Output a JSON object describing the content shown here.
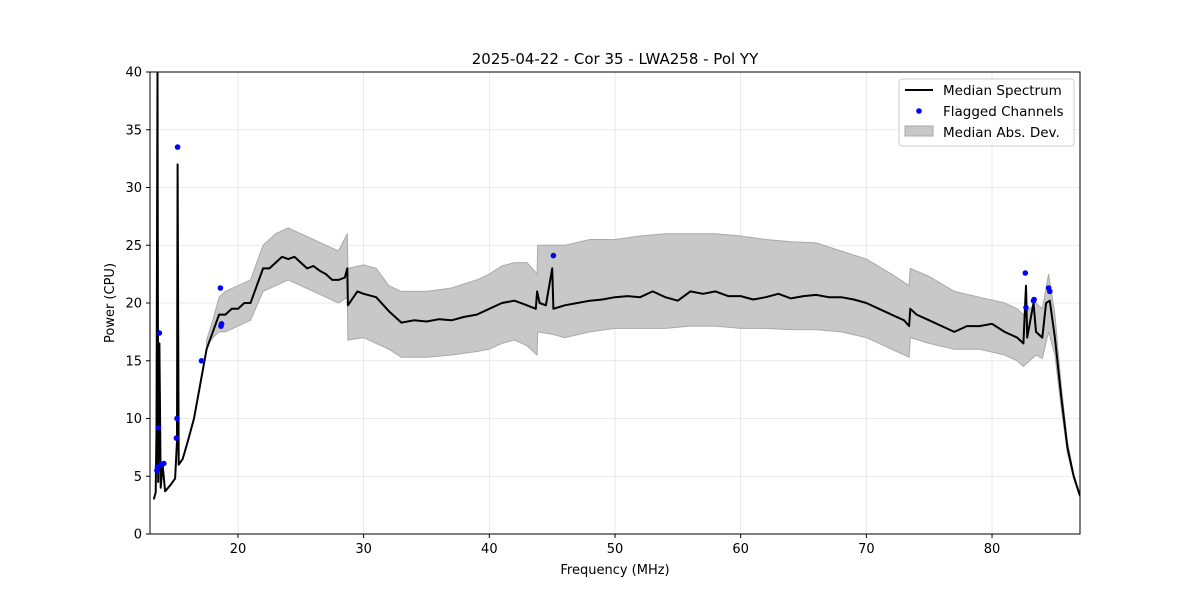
{
  "chart_data": {
    "type": "line",
    "title": "2025-04-22 - Cor 35 - LWA258 - Pol YY",
    "xlabel": "Frequency (MHz)",
    "ylabel": "Power (CPU)",
    "xlim": [
      13.0,
      87.0
    ],
    "ylim": [
      0,
      40
    ],
    "xticks": [
      20,
      30,
      40,
      50,
      60,
      70,
      80
    ],
    "yticks": [
      0,
      5,
      10,
      15,
      20,
      25,
      30,
      35,
      40
    ],
    "grid": true,
    "legend_position": "top-right",
    "legend": [
      {
        "label": "Median Spectrum",
        "kind": "line",
        "color": "#000000"
      },
      {
        "label": "Flagged Channels",
        "kind": "marker",
        "color": "#0000ff"
      },
      {
        "label": "Median Abs. Dev.",
        "kind": "patch",
        "color": "#c8c8c8"
      }
    ],
    "series": [
      {
        "name": "Median Spectrum",
        "color": "#000000",
        "points": [
          [
            13.3,
            3.0
          ],
          [
            13.45,
            3.6
          ],
          [
            13.52,
            9.0
          ],
          [
            13.6,
            40.0
          ],
          [
            13.65,
            4.5
          ],
          [
            13.75,
            16.5
          ],
          [
            13.85,
            4.0
          ],
          [
            14.0,
            6.0
          ],
          [
            14.2,
            3.7
          ],
          [
            14.6,
            4.2
          ],
          [
            15.0,
            4.8
          ],
          [
            15.15,
            8.0
          ],
          [
            15.2,
            32.0
          ],
          [
            15.28,
            6.0
          ],
          [
            15.6,
            6.5
          ],
          [
            16.0,
            8.0
          ],
          [
            16.5,
            10.0
          ],
          [
            17.0,
            13.0
          ],
          [
            17.5,
            16.0
          ],
          [
            18.0,
            17.5
          ],
          [
            18.5,
            19.0
          ],
          [
            19.0,
            19.0
          ],
          [
            19.5,
            19.5
          ],
          [
            20.0,
            19.5
          ],
          [
            20.5,
            20.0
          ],
          [
            21.0,
            20.0
          ],
          [
            21.5,
            21.5
          ],
          [
            22.0,
            23.0
          ],
          [
            22.5,
            23.0
          ],
          [
            23.0,
            23.5
          ],
          [
            23.5,
            24.0
          ],
          [
            24.0,
            23.8
          ],
          [
            24.5,
            24.0
          ],
          [
            25.0,
            23.5
          ],
          [
            25.5,
            23.0
          ],
          [
            26.0,
            23.2
          ],
          [
            26.5,
            22.8
          ],
          [
            27.0,
            22.5
          ],
          [
            27.5,
            22.0
          ],
          [
            28.0,
            22.0
          ],
          [
            28.5,
            22.2
          ],
          [
            28.7,
            23.0
          ],
          [
            28.75,
            19.8
          ],
          [
            29.5,
            21.0
          ],
          [
            30.0,
            20.8
          ],
          [
            31.0,
            20.5
          ],
          [
            32.0,
            19.3
          ],
          [
            33.0,
            18.3
          ],
          [
            34.0,
            18.5
          ],
          [
            35.0,
            18.4
          ],
          [
            36.0,
            18.6
          ],
          [
            37.0,
            18.5
          ],
          [
            38.0,
            18.8
          ],
          [
            39.0,
            19.0
          ],
          [
            40.0,
            19.5
          ],
          [
            41.0,
            20.0
          ],
          [
            42.0,
            20.2
          ],
          [
            43.0,
            19.8
          ],
          [
            43.7,
            19.5
          ],
          [
            43.8,
            21.0
          ],
          [
            44.0,
            20.0
          ],
          [
            44.5,
            19.8
          ],
          [
            45.0,
            23.0
          ],
          [
            45.1,
            19.5
          ],
          [
            46.0,
            19.8
          ],
          [
            47.0,
            20.0
          ],
          [
            48.0,
            20.2
          ],
          [
            49.0,
            20.3
          ],
          [
            50.0,
            20.5
          ],
          [
            51.0,
            20.6
          ],
          [
            52.0,
            20.5
          ],
          [
            53.0,
            21.0
          ],
          [
            54.0,
            20.5
          ],
          [
            55.0,
            20.2
          ],
          [
            56.0,
            21.0
          ],
          [
            57.0,
            20.8
          ],
          [
            58.0,
            21.0
          ],
          [
            59.0,
            20.6
          ],
          [
            60.0,
            20.6
          ],
          [
            61.0,
            20.3
          ],
          [
            62.0,
            20.5
          ],
          [
            63.0,
            20.8
          ],
          [
            64.0,
            20.4
          ],
          [
            65.0,
            20.6
          ],
          [
            66.0,
            20.7
          ],
          [
            67.0,
            20.5
          ],
          [
            68.0,
            20.5
          ],
          [
            69.0,
            20.3
          ],
          [
            70.0,
            20.0
          ],
          [
            71.0,
            19.5
          ],
          [
            72.0,
            19.0
          ],
          [
            73.0,
            18.5
          ],
          [
            73.4,
            18.0
          ],
          [
            73.5,
            19.5
          ],
          [
            74.0,
            19.0
          ],
          [
            75.0,
            18.5
          ],
          [
            76.0,
            18.0
          ],
          [
            77.0,
            17.5
          ],
          [
            78.0,
            18.0
          ],
          [
            79.0,
            18.0
          ],
          [
            80.0,
            18.2
          ],
          [
            81.0,
            17.5
          ],
          [
            82.0,
            17.0
          ],
          [
            82.5,
            16.5
          ],
          [
            82.7,
            21.5
          ],
          [
            82.8,
            17.0
          ],
          [
            83.3,
            20.0
          ],
          [
            83.5,
            17.5
          ],
          [
            84.0,
            17.0
          ],
          [
            84.3,
            20.0
          ],
          [
            84.6,
            20.2
          ],
          [
            85.0,
            17.0
          ],
          [
            85.5,
            12.0
          ],
          [
            86.0,
            7.5
          ],
          [
            86.5,
            5.0
          ],
          [
            87.0,
            3.3
          ]
        ]
      },
      {
        "name": "Flagged Channels",
        "color": "#0000ff",
        "points": [
          [
            13.55,
            5.5
          ],
          [
            13.6,
            5.8
          ],
          [
            13.65,
            9.2
          ],
          [
            13.75,
            17.4
          ],
          [
            13.9,
            6.0
          ],
          [
            14.1,
            6.1
          ],
          [
            15.2,
            33.5
          ],
          [
            15.15,
            10.0
          ],
          [
            15.1,
            8.3
          ],
          [
            17.1,
            15.0
          ],
          [
            18.6,
            21.3
          ],
          [
            18.65,
            18.0
          ],
          [
            18.7,
            18.2
          ],
          [
            45.1,
            24.1
          ],
          [
            82.65,
            22.6
          ],
          [
            82.7,
            19.6
          ],
          [
            83.3,
            20.2
          ],
          [
            83.35,
            20.3
          ],
          [
            84.5,
            21.3
          ],
          [
            84.6,
            21.0
          ]
        ]
      },
      {
        "name": "Median Abs. Dev.",
        "color": "#c8c8c8",
        "band": [
          [
            17.5,
            16.2,
            16.8
          ],
          [
            18.0,
            17.0,
            18.5
          ],
          [
            18.5,
            17.5,
            20.5
          ],
          [
            19.0,
            17.5,
            21.0
          ],
          [
            20.0,
            18.0,
            21.5
          ],
          [
            21.0,
            18.5,
            22.0
          ],
          [
            22.0,
            21.0,
            25.0
          ],
          [
            23.0,
            21.5,
            26.0
          ],
          [
            24.0,
            22.0,
            26.5
          ],
          [
            25.0,
            21.5,
            26.0
          ],
          [
            26.0,
            21.0,
            25.5
          ],
          [
            27.0,
            20.5,
            25.0
          ],
          [
            28.0,
            20.0,
            24.5
          ],
          [
            28.7,
            20.5,
            26.0
          ],
          [
            28.75,
            16.8,
            23.0
          ],
          [
            30.0,
            17.0,
            23.3
          ],
          [
            31.0,
            16.5,
            23.0
          ],
          [
            32.0,
            16.0,
            21.5
          ],
          [
            33.0,
            15.3,
            21.0
          ],
          [
            35.0,
            15.3,
            21.0
          ],
          [
            37.0,
            15.5,
            21.3
          ],
          [
            39.0,
            15.8,
            22.0
          ],
          [
            40.0,
            16.0,
            22.5
          ],
          [
            41.0,
            16.5,
            23.2
          ],
          [
            42.0,
            16.8,
            23.5
          ],
          [
            43.0,
            16.3,
            23.5
          ],
          [
            43.8,
            15.5,
            22.5
          ],
          [
            43.85,
            17.5,
            25.0
          ],
          [
            45.0,
            17.3,
            25.0
          ],
          [
            46.0,
            17.0,
            25.0
          ],
          [
            48.0,
            17.5,
            25.5
          ],
          [
            50.0,
            17.8,
            25.5
          ],
          [
            52.0,
            17.8,
            25.8
          ],
          [
            54.0,
            17.8,
            26.0
          ],
          [
            56.0,
            18.0,
            26.0
          ],
          [
            58.0,
            18.0,
            26.0
          ],
          [
            60.0,
            17.8,
            25.8
          ],
          [
            62.0,
            17.8,
            25.5
          ],
          [
            64.0,
            17.7,
            25.3
          ],
          [
            66.0,
            17.7,
            25.2
          ],
          [
            68.0,
            17.5,
            24.5
          ],
          [
            70.0,
            17.0,
            23.8
          ],
          [
            72.0,
            16.0,
            22.5
          ],
          [
            73.4,
            15.3,
            21.5
          ],
          [
            73.5,
            17.0,
            23.0
          ],
          [
            75.0,
            16.5,
            22.3
          ],
          [
            77.0,
            16.0,
            21.0
          ],
          [
            79.0,
            16.0,
            20.5
          ],
          [
            81.0,
            15.5,
            20.0
          ],
          [
            82.0,
            15.0,
            19.5
          ],
          [
            82.5,
            14.5,
            19.0
          ],
          [
            83.5,
            15.5,
            20.0
          ],
          [
            84.0,
            15.2,
            19.5
          ],
          [
            84.5,
            17.5,
            22.5
          ],
          [
            85.0,
            15.5,
            19.0
          ],
          [
            85.5,
            11.0,
            13.0
          ],
          [
            86.0,
            7.0,
            8.0
          ],
          [
            86.5,
            4.8,
            5.2
          ],
          [
            87.0,
            3.2,
            3.4
          ]
        ]
      }
    ]
  }
}
